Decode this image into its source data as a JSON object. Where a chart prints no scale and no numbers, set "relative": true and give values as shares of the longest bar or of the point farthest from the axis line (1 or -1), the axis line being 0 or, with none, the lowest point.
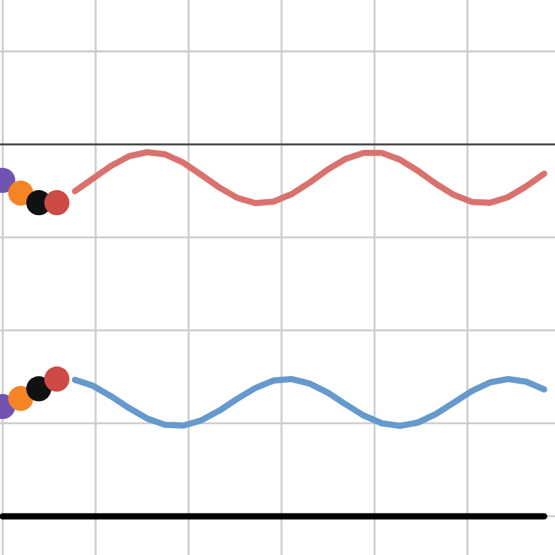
{
  "chart_data": {
    "type": "line",
    "relative": true,
    "grid": true,
    "line_style": "solid",
    "categories": [
      null,
      null,
      null,
      null,
      null,
      null,
      null,
      null,
      null,
      null,
      null,
      null,
      null,
      null,
      null,
      null,
      null,
      null,
      null,
      null,
      null,
      null,
      null,
      null,
      null,
      null,
      null,
      null,
      null,
      null,
      null
    ],
    "series": [
      {
        "color": "#d9726e",
        "values": [
          null,
          null,
          null,
          null,
          -0.126,
          -0.092,
          -0.058,
          -0.032,
          -0.021,
          -0.027,
          -0.049,
          -0.082,
          -0.116,
          -0.144,
          -0.158,
          -0.154,
          -0.134,
          -0.103,
          -0.068,
          -0.039,
          -0.023,
          -0.023,
          -0.041,
          -0.071,
          -0.106,
          -0.136,
          -0.155,
          -0.157,
          -0.142,
          -0.113,
          -0.079
        ]
      },
      {
        "color": "#6699cc",
        "values": [
          null,
          null,
          null,
          null,
          -0.633,
          -0.649,
          -0.677,
          -0.709,
          -0.737,
          -0.754,
          -0.756,
          -0.742,
          -0.716,
          -0.684,
          -0.655,
          -0.635,
          -0.631,
          -0.643,
          -0.667,
          -0.699,
          -0.729,
          -0.75,
          -0.757,
          -0.748,
          -0.725,
          -0.694,
          -0.663,
          -0.64,
          -0.631,
          -0.638,
          -0.659
        ]
      },
      {
        "color": "#000000",
        "values": [
          -1,
          -1,
          -1,
          -1,
          -1,
          -1,
          -1,
          -1,
          -1,
          -1,
          -1,
          -1,
          -1,
          -1,
          -1,
          -1,
          -1,
          -1,
          -1,
          -1,
          -1,
          -1,
          -1,
          -1,
          -1,
          -1,
          -1,
          -1,
          -1,
          -1,
          -1
        ]
      },
      {
        "color": "#7052b0",
        "marker": "circle",
        "values": [
          -0.097,
          null,
          null,
          null,
          null,
          null,
          null,
          null,
          null,
          null,
          null,
          null,
          null,
          null,
          null,
          null,
          null,
          null,
          null,
          null,
          null,
          null,
          null,
          null,
          null,
          null,
          null,
          null,
          null,
          null,
          null
        ]
      },
      {
        "color": "#7052b0",
        "marker": "circle",
        "values": [
          -0.705,
          null,
          null,
          null,
          null,
          null,
          null,
          null,
          null,
          null,
          null,
          null,
          null,
          null,
          null,
          null,
          null,
          null,
          null,
          null,
          null,
          null,
          null,
          null,
          null,
          null,
          null,
          null,
          null,
          null,
          null
        ]
      },
      {
        "color": "#f58426",
        "marker": "circle",
        "values": [
          null,
          -0.131,
          null,
          null,
          null,
          null,
          null,
          null,
          null,
          null,
          null,
          null,
          null,
          null,
          null,
          null,
          null,
          null,
          null,
          null,
          null,
          null,
          null,
          null,
          null,
          null,
          null,
          null,
          null,
          null,
          null
        ]
      },
      {
        "color": "#f58426",
        "marker": "circle",
        "values": [
          null,
          -0.683,
          null,
          null,
          null,
          null,
          null,
          null,
          null,
          null,
          null,
          null,
          null,
          null,
          null,
          null,
          null,
          null,
          null,
          null,
          null,
          null,
          null,
          null,
          null,
          null,
          null,
          null,
          null,
          null,
          null
        ]
      },
      {
        "color": "#111111",
        "marker": "circle",
        "values": [
          null,
          null,
          -0.157,
          null,
          null,
          null,
          null,
          null,
          null,
          null,
          null,
          null,
          null,
          null,
          null,
          null,
          null,
          null,
          null,
          null,
          null,
          null,
          null,
          null,
          null,
          null,
          null,
          null,
          null,
          null,
          null
        ]
      },
      {
        "color": "#111111",
        "marker": "circle",
        "values": [
          null,
          null,
          -0.657,
          null,
          null,
          null,
          null,
          null,
          null,
          null,
          null,
          null,
          null,
          null,
          null,
          null,
          null,
          null,
          null,
          null,
          null,
          null,
          null,
          null,
          null,
          null,
          null,
          null,
          null,
          null,
          null
        ]
      },
      {
        "color": "#cc4b45",
        "marker": "circle",
        "values": [
          null,
          null,
          null,
          -0.157,
          null,
          null,
          null,
          null,
          null,
          null,
          null,
          null,
          null,
          null,
          null,
          null,
          null,
          null,
          null,
          null,
          null,
          null,
          null,
          null,
          null,
          null,
          null,
          null,
          null,
          null,
          null
        ]
      },
      {
        "color": "#cc4b45",
        "marker": "circle",
        "values": [
          null,
          null,
          null,
          -0.631,
          null,
          null,
          null,
          null,
          null,
          null,
          null,
          null,
          null,
          null,
          null,
          null,
          null,
          null,
          null,
          null,
          null,
          null,
          null,
          null,
          null,
          null,
          null,
          null,
          null,
          null,
          null
        ]
      }
    ]
  }
}
